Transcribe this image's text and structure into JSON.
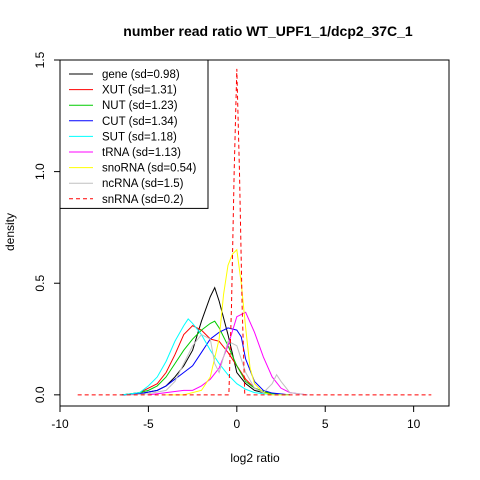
{
  "chart_data": {
    "type": "line",
    "title": "number read ratio WT_UPF1_1/dcp2_37C_1",
    "xlabel": "log2 ratio",
    "ylabel": "density",
    "xlim": [
      -10,
      12
    ],
    "ylim": [
      -0.05,
      1.5
    ],
    "xticks": [
      -10,
      -5,
      0,
      5,
      10
    ],
    "yticks": [
      0.0,
      0.5,
      1.0,
      1.5
    ],
    "xtick_labels": [
      "-10",
      "-5",
      "0",
      "5",
      "10"
    ],
    "ytick_labels": [
      "0.0",
      "0.5",
      "1.0",
      "1.5"
    ],
    "grid": false,
    "legend_position": "top-left",
    "legend_labels": [
      "gene (sd=0.98)",
      "XUT (sd=1.31)",
      "NUT (sd=1.23)",
      "CUT (sd=1.34)",
      "SUT (sd=1.18)",
      "tRNA (sd=1.13)",
      "snoRNA (sd=0.54)",
      "ncRNA (sd=1.5)",
      "snRNA (sd=0.2)"
    ],
    "series": [
      {
        "name": "gene (sd=0.98)",
        "color": "#000000",
        "dash": "solid",
        "x": [
          -6.5,
          -5.5,
          -4.5,
          -4.0,
          -3.5,
          -3.0,
          -2.5,
          -2.0,
          -1.5,
          -1.25,
          -1.0,
          -0.5,
          0.0,
          0.5,
          1.0,
          1.5,
          2.0,
          3.0
        ],
        "y": [
          0.0,
          0.005,
          0.02,
          0.04,
          0.08,
          0.13,
          0.2,
          0.33,
          0.44,
          0.48,
          0.42,
          0.27,
          0.1,
          0.05,
          0.02,
          0.01,
          0.005,
          0.0
        ]
      },
      {
        "name": "XUT (sd=1.31)",
        "color": "#ff0000",
        "dash": "solid",
        "x": [
          -6.5,
          -5.5,
          -5.0,
          -4.5,
          -4.0,
          -3.5,
          -3.0,
          -2.5,
          -2.0,
          -1.5,
          -1.0,
          -0.5,
          0.0,
          0.5,
          1.0,
          1.5,
          2.0,
          3.0
        ],
        "y": [
          0.0,
          0.01,
          0.03,
          0.05,
          0.1,
          0.18,
          0.27,
          0.31,
          0.29,
          0.25,
          0.24,
          0.19,
          0.13,
          0.07,
          0.03,
          0.015,
          0.005,
          0.0
        ]
      },
      {
        "name": "NUT (sd=1.23)",
        "color": "#00cc00",
        "dash": "solid",
        "x": [
          -6.5,
          -5.5,
          -5.0,
          -4.5,
          -4.0,
          -3.5,
          -3.0,
          -2.5,
          -2.0,
          -1.5,
          -1.25,
          -1.0,
          -0.5,
          0.0,
          0.5,
          1.0,
          1.5,
          2.0,
          3.0
        ],
        "y": [
          0.0,
          0.01,
          0.02,
          0.04,
          0.08,
          0.14,
          0.2,
          0.25,
          0.29,
          0.32,
          0.33,
          0.3,
          0.22,
          0.13,
          0.06,
          0.03,
          0.015,
          0.005,
          0.0
        ]
      },
      {
        "name": "CUT (sd=1.34)",
        "color": "#0000ff",
        "dash": "solid",
        "x": [
          -6.5,
          -5.5,
          -4.5,
          -4.0,
          -3.5,
          -3.0,
          -2.5,
          -2.0,
          -1.5,
          -1.0,
          -0.5,
          0.0,
          0.25,
          0.5,
          1.0,
          1.5,
          2.0,
          3.0
        ],
        "y": [
          0.0,
          0.005,
          0.02,
          0.04,
          0.07,
          0.1,
          0.13,
          0.19,
          0.25,
          0.28,
          0.3,
          0.29,
          0.26,
          0.16,
          0.06,
          0.02,
          0.008,
          0.0
        ]
      },
      {
        "name": "SUT (sd=1.18)",
        "color": "#00ffff",
        "dash": "solid",
        "x": [
          -6.5,
          -5.5,
          -5.0,
          -4.5,
          -4.0,
          -3.5,
          -3.0,
          -2.75,
          -2.5,
          -2.0,
          -1.5,
          -1.0,
          -0.5,
          0.0,
          0.5,
          1.0,
          1.5,
          2.0,
          3.0
        ],
        "y": [
          0.0,
          0.01,
          0.04,
          0.08,
          0.15,
          0.24,
          0.31,
          0.34,
          0.32,
          0.27,
          0.2,
          0.14,
          0.09,
          0.05,
          0.025,
          0.01,
          0.005,
          0.002,
          0.0
        ]
      },
      {
        "name": "tRNA (sd=1.13)",
        "color": "#ff00ff",
        "dash": "solid",
        "x": [
          -5.0,
          -4.5,
          -4.0,
          -3.5,
          -3.0,
          -2.5,
          -2.0,
          -1.5,
          -1.0,
          -0.5,
          0.0,
          0.5,
          1.0,
          1.5,
          2.0,
          2.5,
          3.0,
          4.0
        ],
        "y": [
          0.0,
          0.005,
          0.01,
          0.015,
          0.02,
          0.02,
          0.04,
          0.07,
          0.12,
          0.22,
          0.35,
          0.37,
          0.28,
          0.17,
          0.08,
          0.03,
          0.01,
          0.0
        ]
      },
      {
        "name": "snoRNA (sd=0.54)",
        "color": "#ffff00",
        "dash": "solid",
        "x": [
          -4.0,
          -3.0,
          -2.0,
          -1.5,
          -1.0,
          -0.75,
          -0.5,
          -0.25,
          0.0,
          0.25,
          0.5,
          0.75,
          1.0,
          1.5,
          2.0,
          3.0
        ],
        "y": [
          0.0,
          0.0,
          0.02,
          0.08,
          0.25,
          0.45,
          0.58,
          0.63,
          0.65,
          0.5,
          0.3,
          0.12,
          0.05,
          0.01,
          0.0,
          0.0
        ]
      },
      {
        "name": "ncRNA (sd=1.5)",
        "color": "#c0c0c0",
        "dash": "solid",
        "x": [
          -6.0,
          -5.0,
          -4.0,
          -3.5,
          -3.0,
          -2.5,
          -2.0,
          -1.5,
          -1.25,
          -1.0,
          -0.5,
          0.0,
          0.5,
          1.0,
          1.5,
          2.0,
          2.25,
          2.5,
          3.0,
          4.0
        ],
        "y": [
          0.0,
          0.005,
          0.02,
          0.06,
          0.14,
          0.22,
          0.27,
          0.25,
          0.14,
          0.1,
          0.24,
          0.22,
          0.1,
          0.03,
          0.01,
          0.05,
          0.09,
          0.06,
          0.01,
          0.0
        ]
      },
      {
        "name": "snRNA (sd=0.2)",
        "color": "#ff0000",
        "dash": "dashed",
        "x": [
          -9.0,
          -0.6,
          -0.45,
          -0.3,
          -0.15,
          0.0,
          0.15,
          0.3,
          0.45,
          0.6,
          11.0
        ],
        "y": [
          0.0,
          0.0,
          0.0,
          0.4,
          1.0,
          1.46,
          1.0,
          0.4,
          0.0,
          0.0,
          0.0
        ]
      }
    ]
  }
}
